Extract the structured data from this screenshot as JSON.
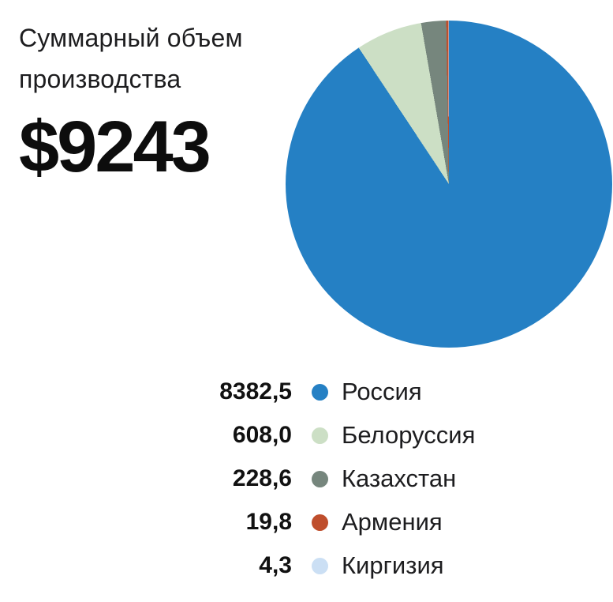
{
  "header": {
    "title": "Суммарный объем производства",
    "total_label": "$9243"
  },
  "chart_data": {
    "type": "pie",
    "title": "Суммарный объем производства",
    "total_display": "$9243",
    "total_value": 9243.2,
    "start_angle_deg": 0,
    "direction": "clockwise",
    "legend_position": "bottom",
    "segments": [
      {
        "label": "Россия",
        "value": 8382.5,
        "display_value": "8382,5",
        "color": "#2580c4"
      },
      {
        "label": "Белоруссия",
        "value": 608.0,
        "display_value": "608,0",
        "color": "#ccdfc5"
      },
      {
        "label": "Казахстан",
        "value": 228.6,
        "display_value": "228,6",
        "color": "#76867d"
      },
      {
        "label": "Армения",
        "value": 19.8,
        "display_value": "19,8",
        "color": "#bf4e2c"
      },
      {
        "label": "Киргизия",
        "value": 4.3,
        "display_value": "4,3",
        "color": "#cbdff4"
      }
    ]
  }
}
